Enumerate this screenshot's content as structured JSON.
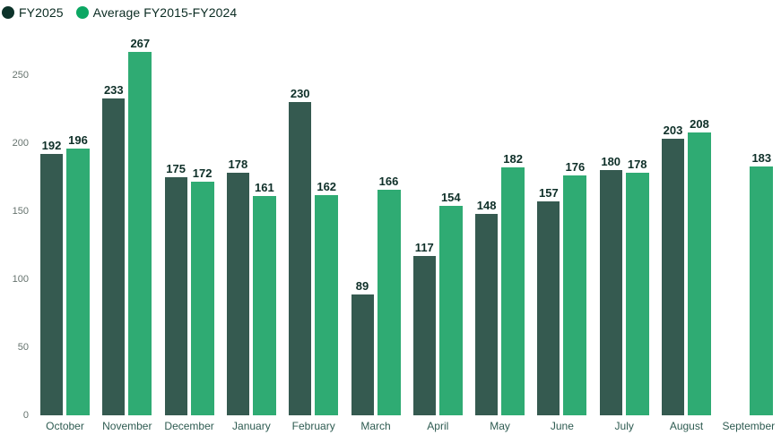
{
  "legend": {
    "items": [
      {
        "label": "FY2025",
        "dot_color": "#0d332a"
      },
      {
        "label": "Average FY2015-FY2024",
        "dot_color": "#0ca763"
      }
    ]
  },
  "chart_data": {
    "type": "bar",
    "title": "",
    "xlabel": "",
    "ylabel": "",
    "categories": [
      "October",
      "November",
      "December",
      "January",
      "February",
      "March",
      "April",
      "May",
      "June",
      "July",
      "August",
      "September"
    ],
    "series": [
      {
        "name": "FY2025",
        "color": "#355a50",
        "values": [
          192,
          233,
          175,
          178,
          230,
          89,
          117,
          148,
          157,
          180,
          203,
          null
        ]
      },
      {
        "name": "Average FY2015-FY2024",
        "color": "#2fab73",
        "values": [
          196,
          267,
          172,
          161,
          162,
          166,
          154,
          182,
          176,
          178,
          208,
          183
        ]
      }
    ],
    "y_ticks": [
      0,
      50,
      100,
      150,
      200,
      250
    ],
    "ylim": [
      0,
      275
    ],
    "grid": false,
    "legend_position": "top-left",
    "value_labels": true
  },
  "style_colors": {
    "value_label": "#0e2f28",
    "month_label": "#2e5b51",
    "tick_label": "#66736e",
    "background": "#ffffff"
  }
}
